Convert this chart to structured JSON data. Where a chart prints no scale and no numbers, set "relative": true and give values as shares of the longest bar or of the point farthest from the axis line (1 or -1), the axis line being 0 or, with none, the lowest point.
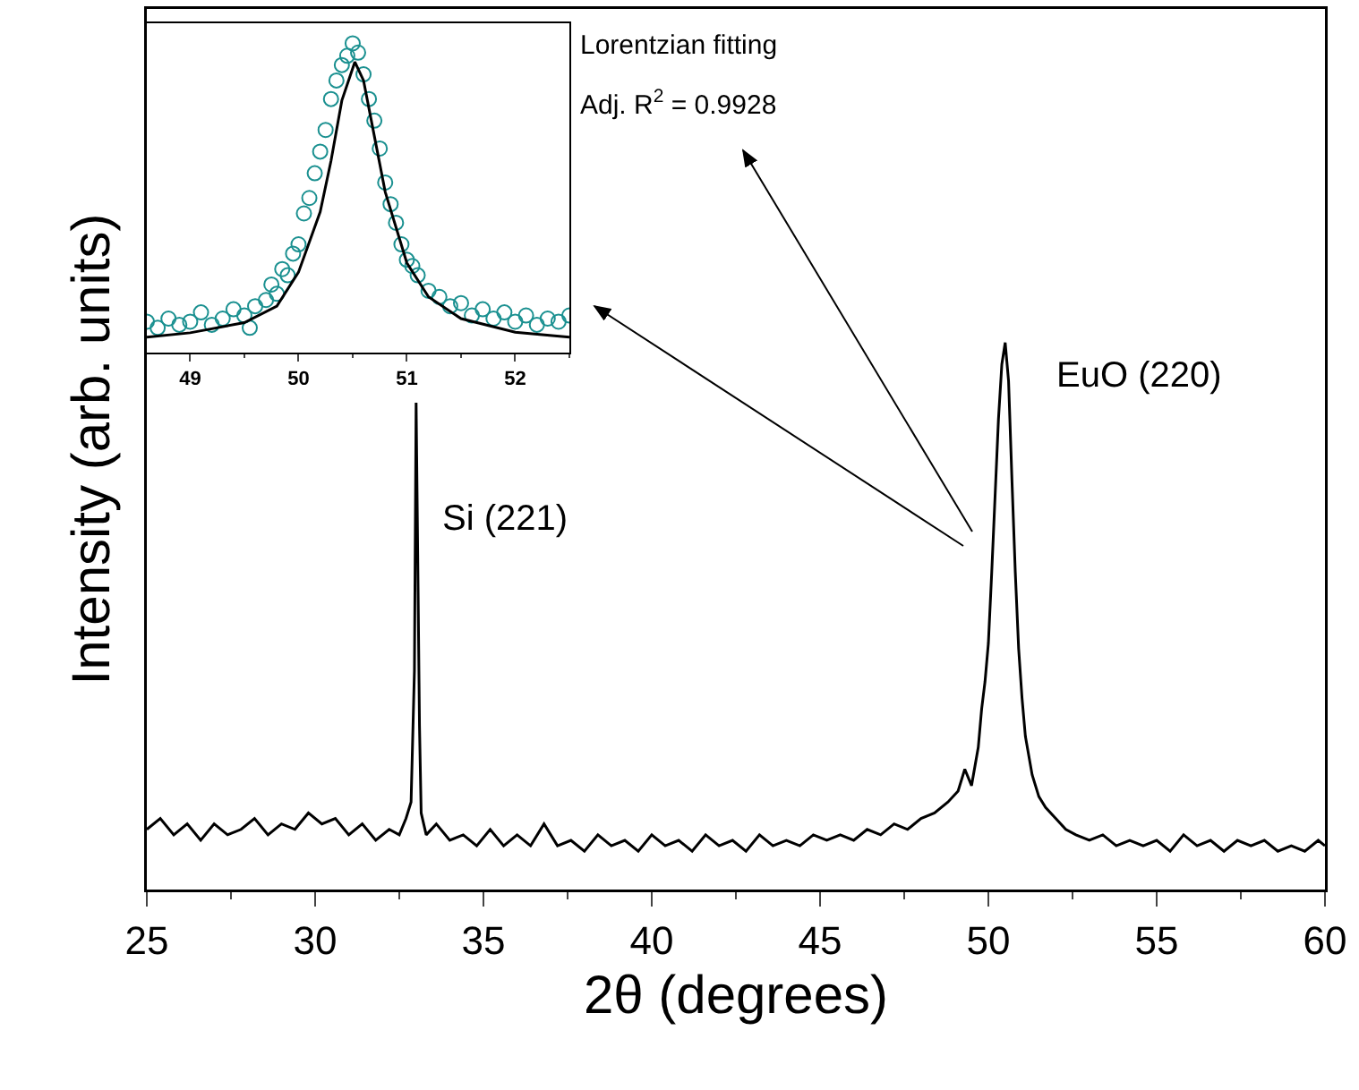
{
  "chart_data": [
    {
      "type": "line",
      "xlabel": "2θ (degrees)",
      "ylabel": "Intensity (arb. units)",
      "relative": true,
      "xlim": [
        25,
        60
      ],
      "xticks": [
        25,
        30,
        35,
        40,
        45,
        50,
        55,
        60
      ],
      "grid": false,
      "marker": "none",
      "line_style": "solid",
      "annotations": [
        "Si (221)",
        "EuO (220)",
        "Lorentzian fitting",
        "Adj. R$^{2}$ = 0.9928"
      ],
      "series": [
        {
          "color": "#000000",
          "x": [
            25,
            25.4,
            25.8,
            26.2,
            26.6,
            27,
            27.4,
            27.8,
            28.2,
            28.6,
            29,
            29.4,
            29.8,
            30.2,
            30.6,
            31,
            31.4,
            31.8,
            32.2,
            32.5,
            32.7,
            32.85,
            32.95,
            33.0,
            33.05,
            33.1,
            33.15,
            33.3,
            33.6,
            34,
            34.4,
            34.8,
            35.2,
            35.6,
            36,
            36.4,
            36.8,
            37.2,
            37.6,
            38,
            38.4,
            38.8,
            39.2,
            39.6,
            40,
            40.4,
            40.8,
            41.2,
            41.6,
            42,
            42.4,
            42.8,
            43.2,
            43.6,
            44,
            44.4,
            44.8,
            45.2,
            45.6,
            46,
            46.4,
            46.8,
            47.2,
            47.6,
            48,
            48.4,
            48.8,
            49.1,
            49.3,
            49.5,
            49.7,
            49.8,
            49.9,
            50.0,
            50.1,
            50.2,
            50.3,
            50.4,
            50.5,
            50.6,
            50.7,
            50.8,
            50.9,
            51.0,
            51.1,
            51.3,
            51.5,
            51.7,
            52,
            52.3,
            52.6,
            53,
            53.4,
            53.8,
            54.2,
            54.6,
            55,
            55.4,
            55.8,
            56.2,
            56.6,
            57,
            57.4,
            57.8,
            58.2,
            58.6,
            59,
            59.4,
            59.8,
            60
          ],
          "values": [
            0.11,
            0.13,
            0.1,
            0.12,
            0.09,
            0.12,
            0.1,
            0.11,
            0.13,
            0.1,
            0.12,
            0.11,
            0.14,
            0.12,
            0.13,
            0.1,
            0.12,
            0.09,
            0.11,
            0.1,
            0.13,
            0.16,
            0.4,
            0.89,
            0.6,
            0.3,
            0.14,
            0.1,
            0.12,
            0.09,
            0.1,
            0.08,
            0.11,
            0.08,
            0.1,
            0.08,
            0.12,
            0.08,
            0.09,
            0.07,
            0.1,
            0.08,
            0.09,
            0.07,
            0.1,
            0.08,
            0.09,
            0.07,
            0.1,
            0.08,
            0.09,
            0.07,
            0.1,
            0.08,
            0.09,
            0.08,
            0.1,
            0.09,
            0.1,
            0.09,
            0.11,
            0.1,
            0.12,
            0.11,
            0.13,
            0.14,
            0.16,
            0.18,
            0.22,
            0.19,
            0.26,
            0.33,
            0.38,
            0.45,
            0.58,
            0.72,
            0.86,
            0.96,
            1.0,
            0.93,
            0.75,
            0.58,
            0.44,
            0.35,
            0.28,
            0.21,
            0.17,
            0.15,
            0.13,
            0.11,
            0.1,
            0.09,
            0.1,
            0.08,
            0.09,
            0.08,
            0.09,
            0.07,
            0.1,
            0.08,
            0.09,
            0.07,
            0.09,
            0.08,
            0.09,
            0.07,
            0.08,
            0.07,
            0.09,
            0.08
          ]
        }
      ]
    },
    {
      "type": "scatter",
      "relative": true,
      "xlim": [
        48.6,
        52.5
      ],
      "xticks": [
        49,
        50,
        51,
        52
      ],
      "grid": false,
      "marker": "circle",
      "series": [
        {
          "color": "#1a9090",
          "x": [
            48.6,
            48.7,
            48.8,
            48.9,
            49.0,
            49.1,
            49.2,
            49.3,
            49.4,
            49.5,
            49.55,
            49.6,
            49.7,
            49.75,
            49.8,
            49.85,
            49.9,
            49.95,
            50.0,
            50.05,
            50.1,
            50.15,
            50.2,
            50.25,
            50.3,
            50.35,
            50.4,
            50.45,
            50.5,
            50.55,
            50.6,
            50.65,
            50.7,
            50.75,
            50.8,
            50.85,
            50.9,
            50.95,
            51.0,
            51.05,
            51.1,
            51.2,
            51.3,
            51.4,
            51.5,
            51.6,
            51.7,
            51.8,
            51.9,
            52.0,
            52.1,
            52.2,
            52.3,
            52.4,
            52.5
          ],
          "values": [
            0.1,
            0.08,
            0.11,
            0.09,
            0.1,
            0.13,
            0.09,
            0.11,
            0.14,
            0.12,
            0.08,
            0.15,
            0.17,
            0.22,
            0.19,
            0.27,
            0.25,
            0.32,
            0.35,
            0.45,
            0.5,
            0.58,
            0.65,
            0.72,
            0.82,
            0.88,
            0.93,
            0.96,
            1.0,
            0.97,
            0.9,
            0.82,
            0.75,
            0.66,
            0.55,
            0.48,
            0.42,
            0.35,
            0.3,
            0.28,
            0.25,
            0.2,
            0.18,
            0.15,
            0.16,
            0.12,
            0.14,
            0.11,
            0.13,
            0.1,
            0.12,
            0.09,
            0.11,
            0.1,
            0.12
          ]
        },
        {
          "type": "line",
          "color": "#000000",
          "marker": "none",
          "x": [
            48.6,
            49.0,
            49.5,
            49.8,
            50.0,
            50.2,
            50.3,
            50.4,
            50.52,
            50.6,
            50.7,
            50.8,
            51.0,
            51.2,
            51.5,
            52.0,
            52.5
          ],
          "values": [
            0.05,
            0.064,
            0.097,
            0.15,
            0.26,
            0.455,
            0.62,
            0.815,
            0.94,
            0.88,
            0.7,
            0.52,
            0.29,
            0.18,
            0.11,
            0.066,
            0.05
          ]
        }
      ]
    }
  ]
}
